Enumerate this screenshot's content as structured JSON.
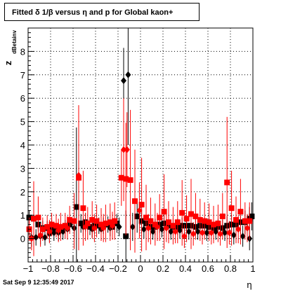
{
  "title": "Fitted δ 1/β versus η and p for Global kaon+",
  "timestamp": "Sat Sep  9 12:35:49 2017",
  "chart_data": {
    "type": "scatter",
    "title": "Fitted δ 1/β versus η and p for Global kaon+",
    "xlabel": "η",
    "ylabel": "z",
    "ylabel_subscript": "dBetainv",
    "xlim": [
      -1,
      1
    ],
    "ylim": [
      -1,
      9
    ],
    "x_ticks": [
      -1,
      -0.8,
      -0.6,
      -0.4,
      -0.2,
      0,
      0.2,
      0.4,
      0.6,
      0.8,
      1
    ],
    "x_tick_labels": [
      "−1",
      "−0.8",
      "−0.6",
      "−0.4",
      "−0.2",
      "0",
      "0.2",
      "0.4",
      "0.6",
      "0.8",
      "1"
    ],
    "y_ticks": [
      0,
      1,
      2,
      3,
      4,
      5,
      6,
      7,
      8
    ],
    "y_tick_labels": [
      "0",
      "1",
      "2",
      "3",
      "4",
      "5",
      "6",
      "7",
      "8"
    ],
    "grid": true,
    "series": [
      {
        "color": "#000000",
        "marker": "square",
        "points": [
          {
            "x": -0.99,
            "y": 0.9,
            "err": 0.3
          },
          {
            "x": -0.95,
            "y": 0.85,
            "err": 0.35
          },
          {
            "x": -0.91,
            "y": 0.6,
            "err": 0.3
          },
          {
            "x": -0.87,
            "y": 0.45,
            "err": 0.3
          },
          {
            "x": -0.83,
            "y": 0.45,
            "err": 0.3
          },
          {
            "x": -0.79,
            "y": 0.45,
            "err": 0.35
          },
          {
            "x": -0.75,
            "y": 0.45,
            "err": 0.35
          },
          {
            "x": -0.71,
            "y": 0.35,
            "err": 0.3
          },
          {
            "x": -0.67,
            "y": 0.5,
            "err": 0.3
          },
          {
            "x": -0.63,
            "y": 0.6,
            "err": 0.3
          },
          {
            "x": -0.57,
            "y": 1.35,
            "err": 3.4
          },
          {
            "x": -0.53,
            "y": 0.65,
            "err": 0.4
          },
          {
            "x": -0.49,
            "y": 0.7,
            "err": 0.4
          },
          {
            "x": -0.45,
            "y": 0.5,
            "err": 0.35
          },
          {
            "x": -0.41,
            "y": 0.55,
            "err": 0.35
          },
          {
            "x": -0.37,
            "y": 0.55,
            "err": 0.35
          },
          {
            "x": -0.33,
            "y": 0.55,
            "err": 0.35
          },
          {
            "x": -0.29,
            "y": 0.6,
            "err": 0.35
          },
          {
            "x": -0.25,
            "y": 0.5,
            "err": 0.35
          },
          {
            "x": -0.21,
            "y": 0.65,
            "err": 0.4
          },
          {
            "x": -0.13,
            "y": 0.1,
            "err": 1.1
          },
          {
            "x": -0.03,
            "y": 0.95,
            "err": 0.7
          },
          {
            "x": 0.01,
            "y": 0.75,
            "err": 0.5
          },
          {
            "x": 0.05,
            "y": 0.65,
            "err": 0.4
          },
          {
            "x": 0.09,
            "y": 0.5,
            "err": 0.35
          },
          {
            "x": 0.13,
            "y": 0.5,
            "err": 0.35
          },
          {
            "x": 0.17,
            "y": 0.6,
            "err": 0.35
          },
          {
            "x": 0.21,
            "y": 0.65,
            "err": 0.4
          },
          {
            "x": 0.25,
            "y": 0.55,
            "err": 0.35
          },
          {
            "x": 0.29,
            "y": 0.5,
            "err": 0.35
          },
          {
            "x": 0.33,
            "y": 0.5,
            "err": 0.35
          },
          {
            "x": 0.37,
            "y": 0.55,
            "err": 0.35
          },
          {
            "x": 0.41,
            "y": 0.55,
            "err": 0.35
          },
          {
            "x": 0.45,
            "y": 0.55,
            "err": 0.35
          },
          {
            "x": 0.49,
            "y": 0.5,
            "err": 0.35
          },
          {
            "x": 0.53,
            "y": 0.55,
            "err": 0.35
          },
          {
            "x": 0.57,
            "y": 0.55,
            "err": 0.35
          },
          {
            "x": 0.61,
            "y": 0.5,
            "err": 0.35
          },
          {
            "x": 0.65,
            "y": 0.45,
            "err": 0.35
          },
          {
            "x": 0.69,
            "y": 0.5,
            "err": 0.35
          },
          {
            "x": 0.73,
            "y": 0.45,
            "err": 0.35
          },
          {
            "x": 0.77,
            "y": 0.55,
            "err": 0.4
          },
          {
            "x": 0.81,
            "y": 0.6,
            "err": 0.4
          },
          {
            "x": 0.85,
            "y": 0.6,
            "err": 0.4
          },
          {
            "x": 0.89,
            "y": 0.7,
            "err": 0.5
          },
          {
            "x": 0.93,
            "y": 0.7,
            "err": 0.5
          },
          {
            "x": 0.97,
            "y": 0.85,
            "err": 0.5
          },
          {
            "x": 0.99,
            "y": 0.95,
            "err": 0.6
          }
        ]
      },
      {
        "color": "#000000",
        "marker": "diamond",
        "points": [
          {
            "x": -0.97,
            "y": 0.05,
            "err": 0.4
          },
          {
            "x": -0.93,
            "y": 0.05,
            "err": 0.35
          },
          {
            "x": -0.89,
            "y": 0.1,
            "err": 0.35
          },
          {
            "x": -0.85,
            "y": 0.05,
            "err": 0.35
          },
          {
            "x": -0.81,
            "y": 0.2,
            "err": 0.35
          },
          {
            "x": -0.77,
            "y": 0.25,
            "err": 0.35
          },
          {
            "x": -0.73,
            "y": 0.25,
            "err": 0.35
          },
          {
            "x": -0.69,
            "y": 0.3,
            "err": 0.35
          },
          {
            "x": -0.65,
            "y": 0.4,
            "err": 0.35
          },
          {
            "x": -0.59,
            "y": 0.45,
            "err": 0.4
          },
          {
            "x": -0.51,
            "y": 0.5,
            "err": 0.4
          },
          {
            "x": -0.43,
            "y": 0.4,
            "err": 0.35
          },
          {
            "x": -0.35,
            "y": 0.4,
            "err": 0.35
          },
          {
            "x": -0.27,
            "y": 0.45,
            "err": 0.35
          },
          {
            "x": -0.19,
            "y": 0.5,
            "err": 0.4
          },
          {
            "x": -0.15,
            "y": 6.75,
            "err": 1.4
          },
          {
            "x": -0.11,
            "y": 7.0,
            "err": 3.0
          },
          {
            "x": -0.07,
            "y": 0.5,
            "err": 0.6
          },
          {
            "x": 0.03,
            "y": 0.4,
            "err": 0.4
          },
          {
            "x": 0.11,
            "y": 0.3,
            "err": 0.35
          },
          {
            "x": 0.19,
            "y": 0.4,
            "err": 0.35
          },
          {
            "x": 0.27,
            "y": 0.3,
            "err": 0.35
          },
          {
            "x": 0.35,
            "y": 0.35,
            "err": 0.35
          },
          {
            "x": 0.43,
            "y": 0.3,
            "err": 0.35
          },
          {
            "x": 0.51,
            "y": 0.3,
            "err": 0.35
          },
          {
            "x": 0.59,
            "y": 0.25,
            "err": 0.35
          },
          {
            "x": 0.67,
            "y": 0.3,
            "err": 0.35
          },
          {
            "x": 0.75,
            "y": 0.25,
            "err": 0.35
          },
          {
            "x": 0.83,
            "y": 0.15,
            "err": 0.4
          },
          {
            "x": 0.91,
            "y": 0.1,
            "err": 0.45
          },
          {
            "x": 0.97,
            "y": 0.0,
            "err": 0.5
          }
        ]
      },
      {
        "color": "#ff0000",
        "marker": "square",
        "points": [
          {
            "x": -0.99,
            "y": 0.4,
            "err": 0.5
          },
          {
            "x": -0.95,
            "y": 0.85,
            "err": 1.6
          },
          {
            "x": -0.91,
            "y": 0.9,
            "err": 0.9
          },
          {
            "x": -0.87,
            "y": 0.4,
            "err": 0.5
          },
          {
            "x": -0.83,
            "y": 0.5,
            "err": 0.5
          },
          {
            "x": -0.79,
            "y": 0.6,
            "err": 0.5
          },
          {
            "x": -0.75,
            "y": 0.55,
            "err": 0.5
          },
          {
            "x": -0.71,
            "y": 0.5,
            "err": 0.6
          },
          {
            "x": -0.67,
            "y": 0.55,
            "err": 0.55
          },
          {
            "x": -0.63,
            "y": 0.8,
            "err": 0.6
          },
          {
            "x": -0.59,
            "y": 0.75,
            "err": 1.2
          },
          {
            "x": -0.55,
            "y": 2.6,
            "err": 3.1
          },
          {
            "x": -0.51,
            "y": 1.3,
            "err": 1.6
          },
          {
            "x": -0.47,
            "y": 0.65,
            "err": 0.7
          },
          {
            "x": -0.43,
            "y": 0.8,
            "err": 0.8
          },
          {
            "x": -0.39,
            "y": 0.75,
            "err": 0.7
          },
          {
            "x": -0.35,
            "y": 0.6,
            "err": 0.7
          },
          {
            "x": -0.31,
            "y": 0.65,
            "err": 0.8
          },
          {
            "x": -0.27,
            "y": 0.7,
            "err": 0.8
          },
          {
            "x": -0.23,
            "y": 0.75,
            "err": 0.8
          },
          {
            "x": -0.17,
            "y": 2.6,
            "err": 1.2
          },
          {
            "x": -0.13,
            "y": 2.55,
            "err": 2.4
          },
          {
            "x": -0.09,
            "y": 2.5,
            "err": 3.0
          },
          {
            "x": -0.05,
            "y": 1.6,
            "err": 2.2
          },
          {
            "x": 0.01,
            "y": 1.45,
            "err": 2.0
          },
          {
            "x": 0.05,
            "y": 0.9,
            "err": 1.4
          },
          {
            "x": 0.09,
            "y": 0.75,
            "err": 1.0
          },
          {
            "x": 0.13,
            "y": 0.6,
            "err": 0.9
          },
          {
            "x": 0.17,
            "y": 0.9,
            "err": 1.0
          },
          {
            "x": 0.21,
            "y": 1.15,
            "err": 1.6
          },
          {
            "x": 0.25,
            "y": 0.7,
            "err": 0.9
          },
          {
            "x": 0.29,
            "y": 0.55,
            "err": 0.8
          },
          {
            "x": 0.33,
            "y": 0.7,
            "err": 0.9
          },
          {
            "x": 0.37,
            "y": 1.1,
            "err": 1.4
          },
          {
            "x": 0.41,
            "y": 0.85,
            "err": 1.0
          },
          {
            "x": 0.45,
            "y": 1.05,
            "err": 1.5
          },
          {
            "x": 0.49,
            "y": 0.95,
            "err": 1.0
          },
          {
            "x": 0.53,
            "y": 0.8,
            "err": 0.9
          },
          {
            "x": 0.57,
            "y": 0.75,
            "err": 0.8
          },
          {
            "x": 0.61,
            "y": 0.7,
            "err": 0.8
          },
          {
            "x": 0.65,
            "y": 0.6,
            "err": 0.8
          },
          {
            "x": 0.69,
            "y": 0.65,
            "err": 0.8
          },
          {
            "x": 0.73,
            "y": 0.95,
            "err": 1.0
          },
          {
            "x": 0.77,
            "y": 2.4,
            "err": 2.8
          },
          {
            "x": 0.81,
            "y": 1.3,
            "err": 1.6
          },
          {
            "x": 0.85,
            "y": 0.8,
            "err": 1.0
          },
          {
            "x": 0.89,
            "y": 1.15,
            "err": 1.4
          },
          {
            "x": 0.93,
            "y": 0.75,
            "err": 0.8
          },
          {
            "x": 0.97,
            "y": 0.75,
            "err": 0.8
          }
        ]
      },
      {
        "color": "#ff0000",
        "marker": "diamond",
        "points": [
          {
            "x": -0.97,
            "y": 0.0,
            "err": 0.5
          },
          {
            "x": -0.89,
            "y": 0.15,
            "err": 0.5
          },
          {
            "x": -0.81,
            "y": 0.3,
            "err": 0.5
          },
          {
            "x": -0.73,
            "y": 0.35,
            "err": 0.5
          },
          {
            "x": -0.65,
            "y": 0.45,
            "err": 0.5
          },
          {
            "x": -0.55,
            "y": 2.7,
            "err": 3.0
          },
          {
            "x": -0.49,
            "y": 0.5,
            "err": 0.6
          },
          {
            "x": -0.41,
            "y": 0.45,
            "err": 0.6
          },
          {
            "x": -0.33,
            "y": 0.45,
            "err": 0.6
          },
          {
            "x": -0.25,
            "y": 0.55,
            "err": 0.6
          },
          {
            "x": -0.15,
            "y": 3.8,
            "err": 2.2
          },
          {
            "x": -0.12,
            "y": 3.8,
            "err": 1.6
          },
          {
            "x": -0.01,
            "y": 1.2,
            "err": 1.2
          },
          {
            "x": 0.07,
            "y": 0.45,
            "err": 0.6
          },
          {
            "x": 0.15,
            "y": 0.5,
            "err": 0.6
          },
          {
            "x": 0.23,
            "y": 0.45,
            "err": 0.6
          },
          {
            "x": 0.31,
            "y": 0.3,
            "err": 0.5
          },
          {
            "x": 0.39,
            "y": 0.1,
            "err": 0.5
          },
          {
            "x": 0.47,
            "y": 0.2,
            "err": 0.5
          },
          {
            "x": 0.55,
            "y": 0.25,
            "err": 0.5
          },
          {
            "x": 0.63,
            "y": 0.25,
            "err": 0.5
          },
          {
            "x": 0.71,
            "y": 0.2,
            "err": 0.5
          },
          {
            "x": 0.79,
            "y": 0.25,
            "err": 0.5
          },
          {
            "x": 0.87,
            "y": 0.4,
            "err": 0.6
          },
          {
            "x": 0.95,
            "y": 0.45,
            "err": 0.6
          }
        ]
      }
    ]
  }
}
